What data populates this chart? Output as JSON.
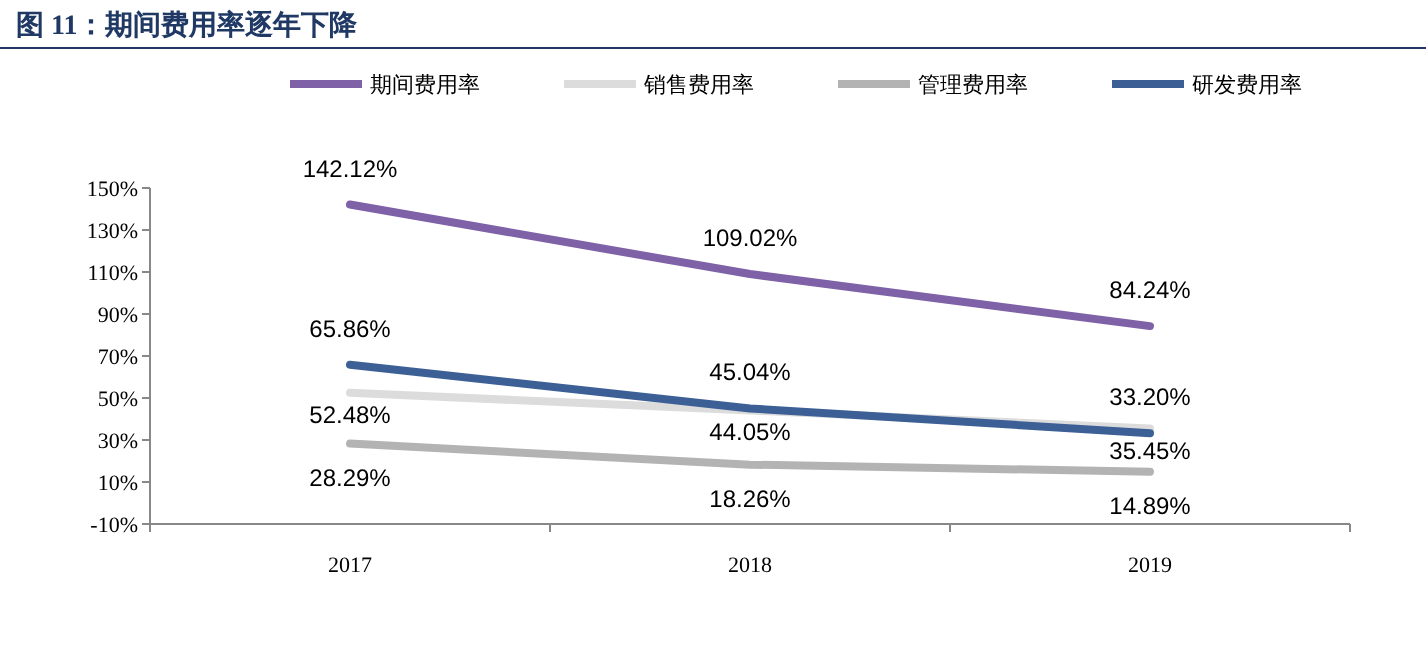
{
  "chart_data": {
    "type": "line",
    "title": "图 11：期间费用率逐年下降",
    "categories": [
      "2017",
      "2018",
      "2019"
    ],
    "series": [
      {
        "name": "期间费用率",
        "color": "#7e61a6",
        "values": [
          142.12,
          109.02,
          84.24
        ],
        "value_labels": [
          "142.12%",
          "109.02%",
          "84.24%"
        ]
      },
      {
        "name": "销售费用率",
        "color": "#dcdcdc",
        "values": [
          52.48,
          44.05,
          35.45
        ],
        "value_labels": [
          "52.48%",
          "44.05%",
          "35.45%"
        ]
      },
      {
        "name": "管理费用率",
        "color": "#b3b3b3",
        "values": [
          28.29,
          18.26,
          14.89
        ],
        "value_labels": [
          "28.29%",
          "18.26%",
          "14.89%"
        ]
      },
      {
        "name": "研发费用率",
        "color": "#3c5f95",
        "values": [
          65.86,
          45.04,
          33.2
        ],
        "value_labels": [
          "65.86%",
          "45.04%",
          "33.20%"
        ]
      }
    ],
    "ylim": [
      -10,
      150
    ],
    "yticks": [
      {
        "value": -10,
        "label": "-10%"
      },
      {
        "value": 10,
        "label": "10%"
      },
      {
        "value": 30,
        "label": "30%"
      },
      {
        "value": 50,
        "label": "50%"
      },
      {
        "value": 70,
        "label": "70%"
      },
      {
        "value": 90,
        "label": "90%"
      },
      {
        "value": 110,
        "label": "110%"
      },
      {
        "value": 130,
        "label": "130%"
      },
      {
        "value": 150,
        "label": "150%"
      }
    ],
    "grid": false,
    "legend": "top",
    "marker": "none",
    "line_style": "solid"
  }
}
